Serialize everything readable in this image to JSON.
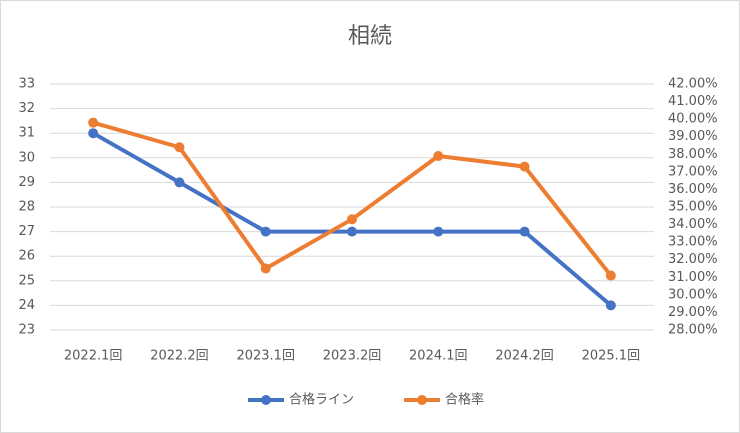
{
  "chart_data": {
    "type": "line",
    "title": "相続",
    "categories": [
      "2022.1回",
      "2022.2回",
      "2023.1回",
      "2023.2回",
      "2024.1回",
      "2024.2回",
      "2025.1回"
    ],
    "series": [
      {
        "name": "合格ライン",
        "color": "#4472c4",
        "values": [
          31,
          29,
          27,
          27,
          27,
          27,
          24
        ]
      },
      {
        "name": "合格率",
        "color": "#ed7d31",
        "axis": "y2",
        "values": [
          39.8,
          38.4,
          31.5,
          34.3,
          37.9,
          37.3,
          31.1
        ]
      }
    ],
    "ylim": [
      23,
      33
    ],
    "yticks": [
      23,
      24,
      25,
      26,
      27,
      28,
      29,
      30,
      31,
      32,
      33
    ],
    "y2lim": [
      28,
      42
    ],
    "y2ticks": [
      {
        "value": 28,
        "label": "28.00%"
      },
      {
        "value": 29,
        "label": "29.00%"
      },
      {
        "value": 30,
        "label": "30.00%"
      },
      {
        "value": 31,
        "label": "31.00%"
      },
      {
        "value": 32,
        "label": "32.00%"
      },
      {
        "value": 33,
        "label": "33.00%"
      },
      {
        "value": 34,
        "label": "34.00%"
      },
      {
        "value": 35,
        "label": "35.00%"
      },
      {
        "value": 36,
        "label": "36.00%"
      },
      {
        "value": 37,
        "label": "37.00%"
      },
      {
        "value": 38,
        "label": "38.00%"
      },
      {
        "value": 39,
        "label": "39.00%"
      },
      {
        "value": 40,
        "label": "40.00%"
      },
      {
        "value": 41,
        "label": "41.00%"
      },
      {
        "value": 42,
        "label": "42.00%"
      }
    ],
    "grid": true,
    "legend": "bottom"
  }
}
